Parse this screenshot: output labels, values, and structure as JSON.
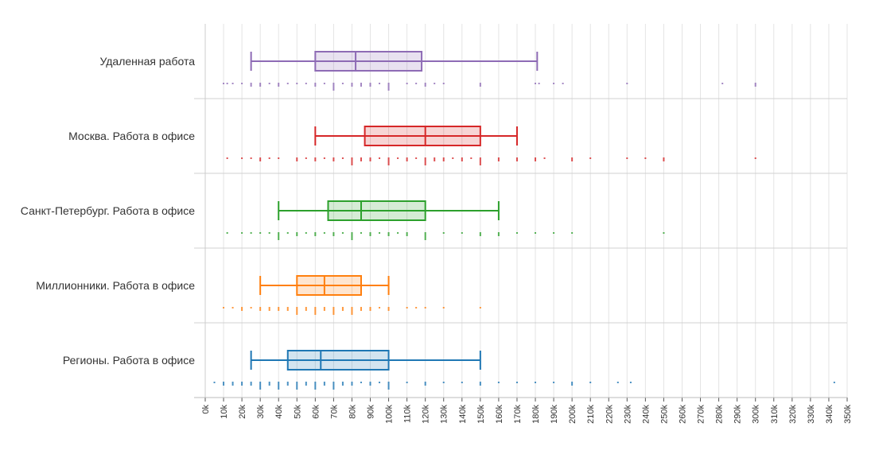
{
  "chart_data": {
    "type": "boxplot",
    "title": "",
    "xlabel": "",
    "ylabel": "",
    "xlim": [
      0,
      350000
    ],
    "grid": true,
    "x_ticks": [
      "0k",
      "10k",
      "20k",
      "30k",
      "40k",
      "50k",
      "60k",
      "70k",
      "80k",
      "90k",
      "100k",
      "110k",
      "120k",
      "130k",
      "140k",
      "150k",
      "160k",
      "170k",
      "180k",
      "190k",
      "200k",
      "210k",
      "220k",
      "230k",
      "240k",
      "250k",
      "260k",
      "270k",
      "280k",
      "290k",
      "300k",
      "310k",
      "320k",
      "330k",
      "340k",
      "350k"
    ],
    "series": [
      {
        "name": "Удаленная работа",
        "color": "#8e6bb5",
        "whisker_low": 25000,
        "q1": 60000,
        "median": 82000,
        "q3": 118000,
        "whisker_high": 181000,
        "points": [
          {
            "value": 10000,
            "count": 1
          },
          {
            "value": 12000,
            "count": 1
          },
          {
            "value": 15000,
            "count": 1
          },
          {
            "value": 20000,
            "count": 1
          },
          {
            "value": 25000,
            "count": 2
          },
          {
            "value": 30000,
            "count": 2
          },
          {
            "value": 35000,
            "count": 1
          },
          {
            "value": 40000,
            "count": 2
          },
          {
            "value": 45000,
            "count": 1
          },
          {
            "value": 50000,
            "count": 1
          },
          {
            "value": 55000,
            "count": 1
          },
          {
            "value": 60000,
            "count": 2
          },
          {
            "value": 65000,
            "count": 1
          },
          {
            "value": 70000,
            "count": 3
          },
          {
            "value": 75000,
            "count": 1
          },
          {
            "value": 80000,
            "count": 2
          },
          {
            "value": 85000,
            "count": 2
          },
          {
            "value": 90000,
            "count": 2
          },
          {
            "value": 95000,
            "count": 1
          },
          {
            "value": 100000,
            "count": 3
          },
          {
            "value": 110000,
            "count": 1
          },
          {
            "value": 115000,
            "count": 1
          },
          {
            "value": 120000,
            "count": 2
          },
          {
            "value": 125000,
            "count": 1
          },
          {
            "value": 130000,
            "count": 1
          },
          {
            "value": 150000,
            "count": 2
          },
          {
            "value": 180000,
            "count": 1
          },
          {
            "value": 182000,
            "count": 1
          },
          {
            "value": 190000,
            "count": 1
          },
          {
            "value": 195000,
            "count": 1
          },
          {
            "value": 230000,
            "count": 1
          },
          {
            "value": 282000,
            "count": 1
          },
          {
            "value": 300000,
            "count": 2
          }
        ]
      },
      {
        "name": "Москва. Работа в офисе",
        "color": "#d62728",
        "whisker_low": 60000,
        "q1": 87000,
        "median": 120000,
        "q3": 150000,
        "whisker_high": 170000,
        "points": [
          {
            "value": 12000,
            "count": 1
          },
          {
            "value": 20000,
            "count": 1
          },
          {
            "value": 25000,
            "count": 1
          },
          {
            "value": 30000,
            "count": 2
          },
          {
            "value": 35000,
            "count": 1
          },
          {
            "value": 40000,
            "count": 1
          },
          {
            "value": 50000,
            "count": 2
          },
          {
            "value": 55000,
            "count": 1
          },
          {
            "value": 60000,
            "count": 2
          },
          {
            "value": 65000,
            "count": 1
          },
          {
            "value": 70000,
            "count": 2
          },
          {
            "value": 75000,
            "count": 1
          },
          {
            "value": 80000,
            "count": 3
          },
          {
            "value": 85000,
            "count": 2
          },
          {
            "value": 90000,
            "count": 2
          },
          {
            "value": 95000,
            "count": 1
          },
          {
            "value": 100000,
            "count": 3
          },
          {
            "value": 105000,
            "count": 1
          },
          {
            "value": 110000,
            "count": 2
          },
          {
            "value": 115000,
            "count": 1
          },
          {
            "value": 120000,
            "count": 3
          },
          {
            "value": 125000,
            "count": 2
          },
          {
            "value": 130000,
            "count": 2
          },
          {
            "value": 135000,
            "count": 1
          },
          {
            "value": 140000,
            "count": 2
          },
          {
            "value": 145000,
            "count": 1
          },
          {
            "value": 150000,
            "count": 3
          },
          {
            "value": 160000,
            "count": 2
          },
          {
            "value": 170000,
            "count": 2
          },
          {
            "value": 180000,
            "count": 2
          },
          {
            "value": 185000,
            "count": 1
          },
          {
            "value": 200000,
            "count": 2
          },
          {
            "value": 210000,
            "count": 1
          },
          {
            "value": 230000,
            "count": 1
          },
          {
            "value": 240000,
            "count": 1
          },
          {
            "value": 250000,
            "count": 2
          },
          {
            "value": 300000,
            "count": 1
          }
        ]
      },
      {
        "name": "Санкт-Петербург. Работа в офисе",
        "color": "#2ca02c",
        "whisker_low": 40000,
        "q1": 67000,
        "median": 85000,
        "q3": 120000,
        "whisker_high": 160000,
        "points": [
          {
            "value": 12000,
            "count": 1
          },
          {
            "value": 20000,
            "count": 1
          },
          {
            "value": 25000,
            "count": 1
          },
          {
            "value": 30000,
            "count": 1
          },
          {
            "value": 35000,
            "count": 1
          },
          {
            "value": 40000,
            "count": 3
          },
          {
            "value": 45000,
            "count": 1
          },
          {
            "value": 50000,
            "count": 2
          },
          {
            "value": 55000,
            "count": 1
          },
          {
            "value": 60000,
            "count": 2
          },
          {
            "value": 65000,
            "count": 1
          },
          {
            "value": 70000,
            "count": 2
          },
          {
            "value": 75000,
            "count": 1
          },
          {
            "value": 80000,
            "count": 3
          },
          {
            "value": 85000,
            "count": 1
          },
          {
            "value": 90000,
            "count": 2
          },
          {
            "value": 95000,
            "count": 1
          },
          {
            "value": 100000,
            "count": 2
          },
          {
            "value": 105000,
            "count": 1
          },
          {
            "value": 110000,
            "count": 2
          },
          {
            "value": 120000,
            "count": 3
          },
          {
            "value": 130000,
            "count": 1
          },
          {
            "value": 140000,
            "count": 1
          },
          {
            "value": 150000,
            "count": 2
          },
          {
            "value": 160000,
            "count": 2
          },
          {
            "value": 170000,
            "count": 1
          },
          {
            "value": 180000,
            "count": 1
          },
          {
            "value": 190000,
            "count": 1
          },
          {
            "value": 200000,
            "count": 1
          },
          {
            "value": 250000,
            "count": 1
          }
        ]
      },
      {
        "name": "Миллионники. Работа в офисе",
        "color": "#ff7f0e",
        "whisker_low": 30000,
        "q1": 50000,
        "median": 65000,
        "q3": 85000,
        "whisker_high": 100000,
        "points": [
          {
            "value": 10000,
            "count": 1
          },
          {
            "value": 15000,
            "count": 1
          },
          {
            "value": 20000,
            "count": 2
          },
          {
            "value": 25000,
            "count": 1
          },
          {
            "value": 30000,
            "count": 2
          },
          {
            "value": 35000,
            "count": 2
          },
          {
            "value": 40000,
            "count": 2
          },
          {
            "value": 45000,
            "count": 2
          },
          {
            "value": 50000,
            "count": 3
          },
          {
            "value": 55000,
            "count": 2
          },
          {
            "value": 60000,
            "count": 3
          },
          {
            "value": 65000,
            "count": 2
          },
          {
            "value": 70000,
            "count": 3
          },
          {
            "value": 75000,
            "count": 2
          },
          {
            "value": 80000,
            "count": 3
          },
          {
            "value": 85000,
            "count": 2
          },
          {
            "value": 90000,
            "count": 2
          },
          {
            "value": 95000,
            "count": 1
          },
          {
            "value": 100000,
            "count": 2
          },
          {
            "value": 110000,
            "count": 1
          },
          {
            "value": 115000,
            "count": 1
          },
          {
            "value": 120000,
            "count": 1
          },
          {
            "value": 130000,
            "count": 1
          },
          {
            "value": 150000,
            "count": 1
          }
        ]
      },
      {
        "name": "Регионы. Работа в офисе",
        "color": "#1f77b4",
        "whisker_low": 25000,
        "q1": 45000,
        "median": 63000,
        "q3": 100000,
        "whisker_high": 150000,
        "points": [
          {
            "value": 5000,
            "count": 1
          },
          {
            "value": 10000,
            "count": 2
          },
          {
            "value": 15000,
            "count": 2
          },
          {
            "value": 20000,
            "count": 2
          },
          {
            "value": 25000,
            "count": 2
          },
          {
            "value": 30000,
            "count": 3
          },
          {
            "value": 35000,
            "count": 2
          },
          {
            "value": 40000,
            "count": 3
          },
          {
            "value": 45000,
            "count": 2
          },
          {
            "value": 50000,
            "count": 3
          },
          {
            "value": 55000,
            "count": 2
          },
          {
            "value": 60000,
            "count": 3
          },
          {
            "value": 65000,
            "count": 2
          },
          {
            "value": 70000,
            "count": 3
          },
          {
            "value": 75000,
            "count": 2
          },
          {
            "value": 80000,
            "count": 2
          },
          {
            "value": 85000,
            "count": 1
          },
          {
            "value": 90000,
            "count": 2
          },
          {
            "value": 95000,
            "count": 1
          },
          {
            "value": 100000,
            "count": 3
          },
          {
            "value": 110000,
            "count": 1
          },
          {
            "value": 120000,
            "count": 2
          },
          {
            "value": 130000,
            "count": 1
          },
          {
            "value": 140000,
            "count": 1
          },
          {
            "value": 150000,
            "count": 2
          },
          {
            "value": 160000,
            "count": 1
          },
          {
            "value": 170000,
            "count": 1
          },
          {
            "value": 180000,
            "count": 1
          },
          {
            "value": 190000,
            "count": 1
          },
          {
            "value": 200000,
            "count": 2
          },
          {
            "value": 210000,
            "count": 1
          },
          {
            "value": 225000,
            "count": 1
          },
          {
            "value": 232000,
            "count": 1
          },
          {
            "value": 343000,
            "count": 1
          }
        ]
      }
    ]
  }
}
